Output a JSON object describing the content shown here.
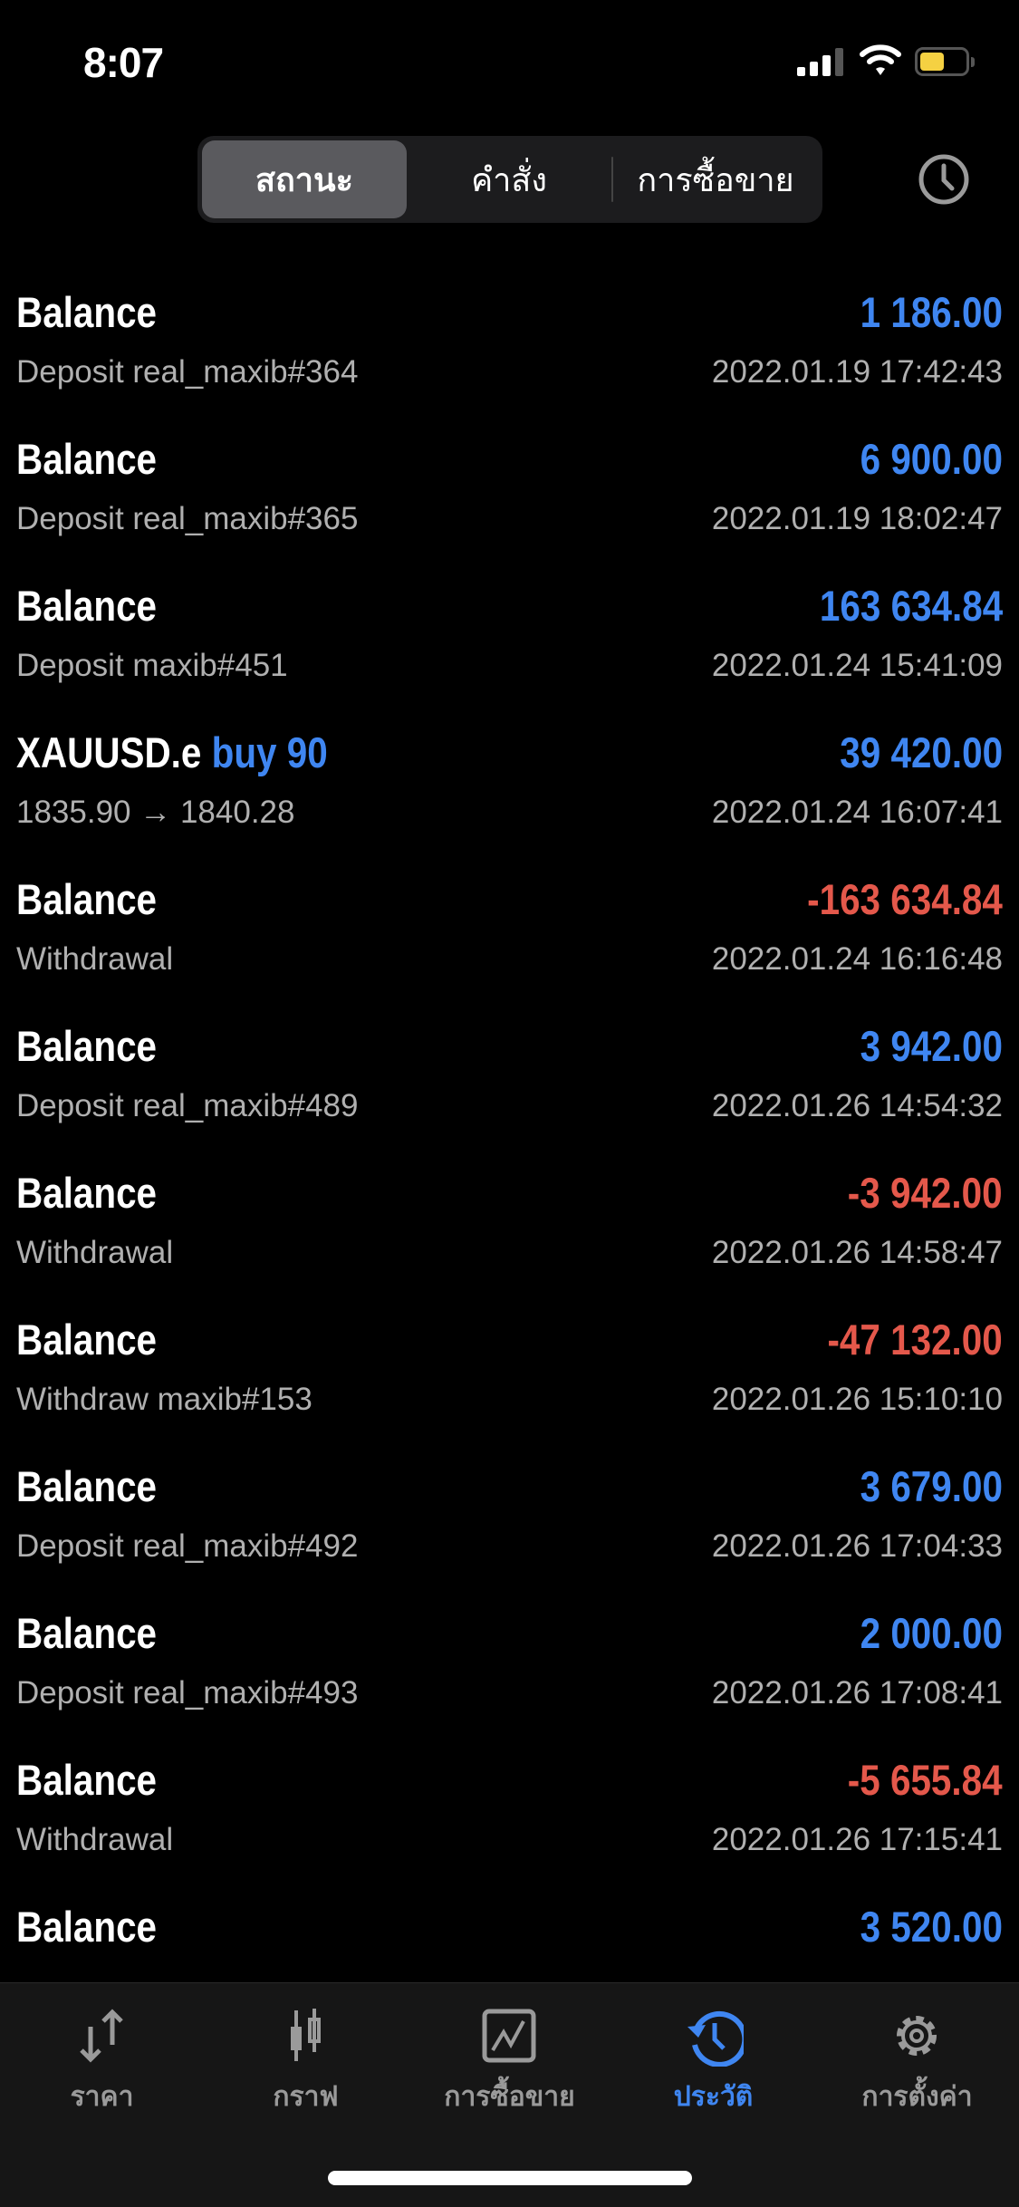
{
  "status_bar": {
    "time": "8:07"
  },
  "segments": [
    {
      "label": "สถานะ",
      "active": true
    },
    {
      "label": "คำสั่ง",
      "active": false
    },
    {
      "label": "การซื้อขาย",
      "active": false
    }
  ],
  "colors": {
    "positive": "#3f86f1",
    "negative": "#e4584b",
    "battery": "#f5d142"
  },
  "history": [
    {
      "title": "Balance",
      "amount": "1 186.00",
      "sign": "pos",
      "comment": "Deposit real_maxib#364",
      "time": "2022.01.19 17:42:43"
    },
    {
      "title": "Balance",
      "amount": "6 900.00",
      "sign": "pos",
      "comment": "Deposit real_maxib#365",
      "time": "2022.01.19 18:02:47"
    },
    {
      "title": "Balance",
      "amount": "163 634.84",
      "sign": "pos",
      "comment": "Deposit maxib#451",
      "time": "2022.01.24 15:41:09"
    },
    {
      "title": "XAUUSD.e",
      "side": "buy 90",
      "amount": "39 420.00",
      "sign": "pos",
      "comment": "1835.90 → 1840.28",
      "time": "2022.01.24 16:07:41"
    },
    {
      "title": "Balance",
      "amount": "-163 634.84",
      "sign": "neg",
      "comment": "Withdrawal",
      "time": "2022.01.24 16:16:48"
    },
    {
      "title": "Balance",
      "amount": "3 942.00",
      "sign": "pos",
      "comment": "Deposit real_maxib#489",
      "time": "2022.01.26 14:54:32"
    },
    {
      "title": "Balance",
      "amount": "-3 942.00",
      "sign": "neg",
      "comment": "Withdrawal",
      "time": "2022.01.26 14:58:47"
    },
    {
      "title": "Balance",
      "amount": "-47 132.00",
      "sign": "neg",
      "comment": "Withdraw maxib#153",
      "time": "2022.01.26 15:10:10"
    },
    {
      "title": "Balance",
      "amount": "3 679.00",
      "sign": "pos",
      "comment": "Deposit real_maxib#492",
      "time": "2022.01.26 17:04:33"
    },
    {
      "title": "Balance",
      "amount": "2 000.00",
      "sign": "pos",
      "comment": "Deposit real_maxib#493",
      "time": "2022.01.26 17:08:41"
    },
    {
      "title": "Balance",
      "amount": "-5 655.84",
      "sign": "neg",
      "comment": "Withdrawal",
      "time": "2022.01.26 17:15:41"
    },
    {
      "title": "Balance",
      "amount": "3 520.00",
      "sign": "pos",
      "comment": "",
      "time": ""
    }
  ],
  "tabbar": [
    {
      "label": "ราคา",
      "icon": "quotes-arrows-icon",
      "active": false
    },
    {
      "label": "กราฟ",
      "icon": "candlestick-chart-icon",
      "active": false
    },
    {
      "label": "การซื้อขาย",
      "icon": "trade-chart-icon",
      "active": false
    },
    {
      "label": "ประวัติ",
      "icon": "history-icon",
      "active": true
    },
    {
      "label": "การตั้งค่า",
      "icon": "settings-gear-icon",
      "active": false
    }
  ]
}
